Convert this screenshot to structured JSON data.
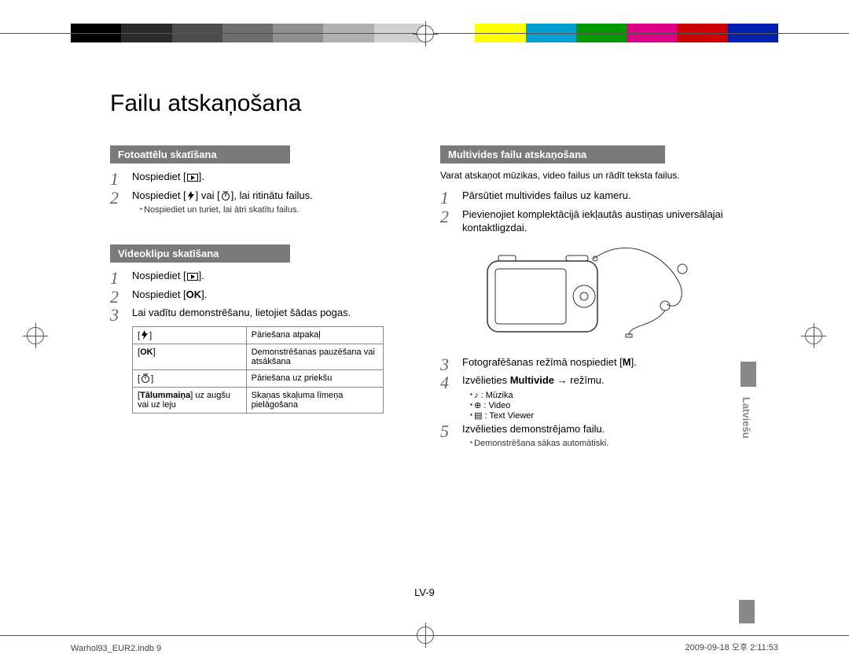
{
  "colorbar": [
    "#000000",
    "#2b2b2b",
    "#4d4d4d",
    "#6e6e6e",
    "#8f8f8f",
    "#b0b0b0",
    "#d1d1d1",
    "#ffffff",
    "#ffff00",
    "#00a0d0",
    "#009900",
    "#dd0088",
    "#cc0000",
    "#0020b0"
  ],
  "title": "Failu atskaņošana",
  "left": {
    "sec1": {
      "bar": "Fotoattēlu skatīšana",
      "steps": [
        "Nospiediet [▶].",
        "Nospiediet [↯] vai [⟳], lai ritinātu failus."
      ],
      "note": "Nospiediet un turiet, lai ātri skatītu failus."
    },
    "sec2": {
      "bar": "Videoklipu skatīšana",
      "steps": [
        "Nospiediet [▶].",
        "Nospiediet [OK].",
        "Lai vadītu demonstrēšanu, lietojiet šādas pogas."
      ],
      "table": [
        [
          "[↯]",
          "Pāriešana atpakaļ"
        ],
        [
          "[OK]",
          "Demonstrēšanas pauzēšana vai atsākšana"
        ],
        [
          "[⟳]",
          "Pāriešana uz priekšu"
        ],
        [
          "[Tālummaiņa] uz augšu vai uz leju",
          "Skaņas skaļuma līmeņa pielāgošana"
        ]
      ]
    }
  },
  "right": {
    "sec1": {
      "bar": "Multivides failu atskaņošana",
      "intro": "Varat atskaņot mūzikas, video failus un rādīt teksta failus.",
      "steps12": [
        "Pārsūtiet multivides failus uz kameru.",
        "Pievienojiet komplektācijā iekļautās austiņas universālajai kontaktligzdai."
      ],
      "steps345": [
        "Fotografēšanas režīmā nospiediet [M].",
        "Izvēlieties Multivide → režīmu.",
        "Izvēlieties demonstrējamo failu."
      ],
      "modes": [
        "♪ : Mūzika",
        "⊕ : Video",
        "▤ : Text Viewer"
      ],
      "endnote": "Demonstrēšana sākas automātiski."
    }
  },
  "lang": "Latviešu",
  "pageNum": "LV-9",
  "footerL": "Warhol93_EUR2.indb   9",
  "footerR": "2009-09-18   오후 2:11:53"
}
